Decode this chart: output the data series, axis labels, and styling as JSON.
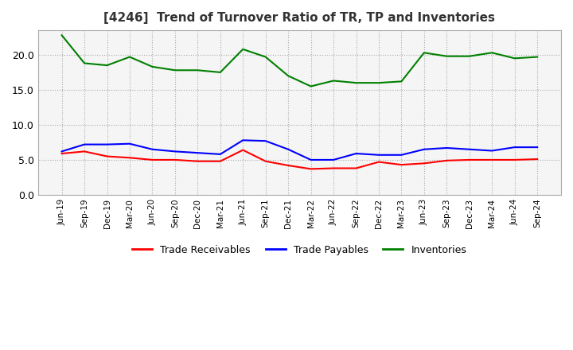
{
  "title": "[4246]  Trend of Turnover Ratio of TR, TP and Inventories",
  "ylim": [
    0.0,
    23.5
  ],
  "yticks": [
    0.0,
    5.0,
    10.0,
    15.0,
    20.0
  ],
  "legend_labels": [
    "Trade Receivables",
    "Trade Payables",
    "Inventories"
  ],
  "legend_colors": [
    "#ff0000",
    "#0000ff",
    "#008000"
  ],
  "dates": [
    "Jun-19",
    "Sep-19",
    "Dec-19",
    "Mar-20",
    "Jun-20",
    "Sep-20",
    "Dec-20",
    "Mar-21",
    "Jun-21",
    "Sep-21",
    "Dec-21",
    "Mar-22",
    "Jun-22",
    "Sep-22",
    "Dec-22",
    "Mar-23",
    "Jun-23",
    "Sep-23",
    "Dec-23",
    "Mar-24",
    "Jun-24",
    "Sep-24"
  ],
  "trade_receivables": [
    5.9,
    6.2,
    5.5,
    5.3,
    5.0,
    5.0,
    4.8,
    4.8,
    6.4,
    4.8,
    4.2,
    3.7,
    3.8,
    3.8,
    4.7,
    4.3,
    4.5,
    4.9,
    5.0,
    5.0,
    5.0,
    5.1
  ],
  "trade_payables": [
    6.2,
    7.2,
    7.2,
    7.3,
    6.5,
    6.2,
    6.0,
    5.8,
    7.8,
    7.7,
    6.5,
    5.0,
    5.0,
    5.9,
    5.7,
    5.7,
    6.5,
    6.7,
    6.5,
    6.3,
    6.8,
    6.8
  ],
  "inventories": [
    22.8,
    18.8,
    18.5,
    19.7,
    18.3,
    17.8,
    17.8,
    17.5,
    20.8,
    19.7,
    17.0,
    15.5,
    16.3,
    16.0,
    16.0,
    16.2,
    20.3,
    19.8,
    19.8,
    20.3,
    19.5,
    19.7
  ]
}
